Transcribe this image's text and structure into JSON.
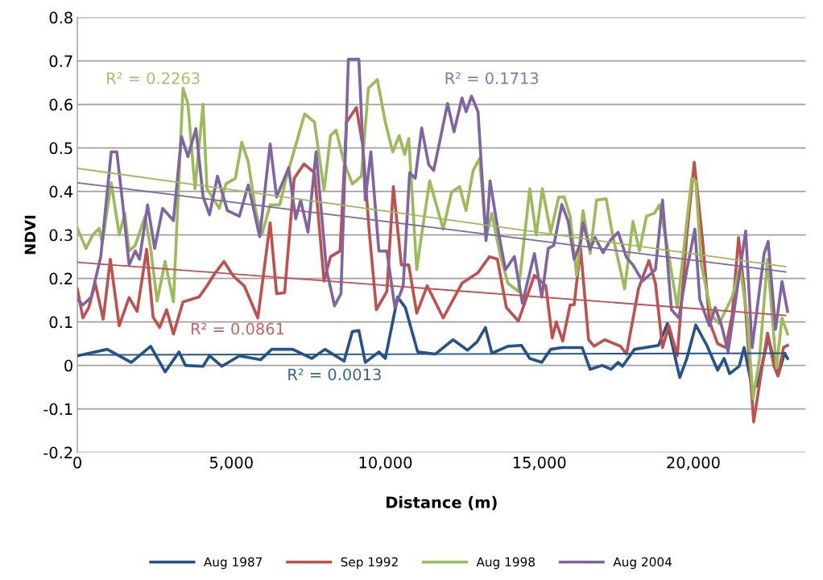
{
  "chart_data": {
    "type": "line",
    "xlabel": "Distance (m)",
    "ylabel": "NDVI",
    "xlim": [
      0,
      23650
    ],
    "xticks": [
      {
        "value": 0,
        "label": "0"
      },
      {
        "value": 5000,
        "label": "5,000"
      },
      {
        "value": 10000,
        "label": "10,000"
      },
      {
        "value": 15000,
        "label": "15,000"
      },
      {
        "value": 20000,
        "label": "20,000"
      }
    ],
    "ylim": [
      -0.2,
      0.8
    ],
    "yticks": [
      -0.2,
      -0.1,
      0,
      0.1,
      0.2,
      0.3,
      0.4,
      0.5,
      0.6,
      0.7,
      0.8
    ],
    "grid": "y",
    "legend": "bottom",
    "marker": "none",
    "line_style": "solid",
    "series": [
      {
        "name": "Aug 1987",
        "color": "#23538a",
        "x": [
          0,
          970,
          1750,
          2380,
          2850,
          3300,
          3510,
          4080,
          4290,
          4690,
          5260,
          5950,
          6310,
          6990,
          7610,
          8040,
          8660,
          8930,
          9140,
          9350,
          9790,
          10000,
          10400,
          10650,
          11050,
          11620,
          12200,
          12670,
          12980,
          13250,
          13460,
          13980,
          14420,
          14690,
          15080,
          15370,
          15730,
          16390,
          16650,
          17040,
          17330,
          17560,
          17700,
          18090,
          18870,
          19160,
          19560,
          19790,
          20080,
          20440,
          20790,
          21000,
          21180,
          21490,
          21650,
          21910,
          22090,
          22430,
          22750,
          22960,
          23060
        ],
        "values": [
          0.022,
          0.037,
          0.007,
          0.044,
          -0.015,
          0.031,
          0,
          -0.002,
          0.022,
          -0.002,
          0.022,
          0.013,
          0.037,
          0.037,
          0.016,
          0.037,
          0.01,
          0.078,
          0.08,
          0.007,
          0.031,
          0.016,
          0.157,
          0.133,
          0.031,
          0.026,
          0.059,
          0.035,
          0.054,
          0.087,
          0.028,
          0.044,
          0.046,
          0.016,
          0.007,
          0.037,
          0.041,
          0.041,
          -0.009,
          0,
          -0.009,
          0.007,
          -0.002,
          0.037,
          0.046,
          0.096,
          -0.028,
          0.016,
          0.093,
          0.046,
          -0.011,
          0.016,
          -0.019,
          -0.002,
          0.041,
          -0.052,
          -0.046,
          0.065,
          -0.024,
          0.028,
          0.016
        ]
      },
      {
        "name": "Sep 1992",
        "color": "#c0504d",
        "x": [
          0,
          180,
          370,
          580,
          840,
          1070,
          1360,
          1680,
          1940,
          2250,
          2460,
          2670,
          2900,
          3120,
          3430,
          3950,
          4210,
          4480,
          4760,
          5080,
          5420,
          5860,
          6260,
          6470,
          6730,
          7040,
          7360,
          7700,
          8010,
          8220,
          8530,
          8740,
          9060,
          9270,
          9480,
          9710,
          10050,
          10260,
          10520,
          10760,
          11020,
          11360,
          11880,
          12490,
          13010,
          13380,
          13640,
          13930,
          14320,
          14840,
          15210,
          15420,
          15550,
          15760,
          16000,
          16130,
          16340,
          16600,
          16780,
          17120,
          17640,
          17830,
          18220,
          18560,
          18770,
          19000,
          19210,
          19480,
          19790,
          20030,
          20180,
          20310,
          20520,
          20790,
          21050,
          21260,
          21470,
          21650,
          21960,
          22170,
          22410,
          22620,
          22750,
          22930,
          23060
        ],
        "values": [
          0.176,
          0.109,
          0.133,
          0.189,
          0.106,
          0.244,
          0.091,
          0.156,
          0.124,
          0.267,
          0.111,
          0.087,
          0.128,
          0.072,
          0.146,
          0.157,
          0.183,
          0.213,
          0.239,
          0.204,
          0.183,
          0.109,
          0.328,
          0.165,
          0.167,
          0.43,
          0.463,
          0.443,
          0.194,
          0.25,
          0.263,
          0.559,
          0.593,
          0.504,
          0.306,
          0.128,
          0.17,
          0.411,
          0.231,
          0.231,
          0.12,
          0.183,
          0.109,
          0.189,
          0.213,
          0.25,
          0.244,
          0.133,
          0.102,
          0.207,
          0.183,
          0.063,
          0.1,
          0.056,
          0.139,
          0.139,
          0.269,
          0.059,
          0.044,
          0.059,
          0.044,
          0.026,
          0.176,
          0.241,
          0.189,
          0.041,
          0.091,
          0.022,
          0.3,
          0.467,
          0.369,
          0.281,
          0.102,
          0.05,
          0.041,
          0.115,
          0.294,
          0.176,
          -0.13,
          -0.033,
          0.074,
          -0.002,
          -0.024,
          0.041,
          0.046
        ]
      },
      {
        "name": "Aug 1998",
        "color": "#9bbb59",
        "x": [
          0,
          280,
          500,
          710,
          810,
          1100,
          1360,
          1540,
          1680,
          1880,
          2200,
          2380,
          2590,
          2850,
          3120,
          3430,
          3590,
          3820,
          4080,
          4210,
          4610,
          4820,
          5130,
          5340,
          5550,
          5790,
          5990,
          6260,
          6570,
          6780,
          7040,
          7380,
          7700,
          8010,
          8220,
          8400,
          8660,
          8930,
          9220,
          9450,
          9740,
          10000,
          10240,
          10450,
          10630,
          10760,
          11020,
          11150,
          11440,
          11880,
          12150,
          12410,
          12620,
          12850,
          13060,
          13270,
          13460,
          13720,
          13980,
          14320,
          14690,
          14900,
          15100,
          15370,
          15630,
          15810,
          16000,
          16210,
          16420,
          16650,
          16860,
          17170,
          17380,
          17770,
          18040,
          18250,
          18480,
          18740,
          18900,
          19140,
          19480,
          19790,
          19950,
          20080,
          20260,
          20600,
          20840,
          21260,
          21520,
          21750,
          21940,
          22150,
          22410,
          22700,
          22880,
          23060
        ],
        "values": [
          0.315,
          0.269,
          0.3,
          0.315,
          0.281,
          0.42,
          0.3,
          0.35,
          0.263,
          0.276,
          0.343,
          0.269,
          0.148,
          0.239,
          0.146,
          0.637,
          0.602,
          0.406,
          0.6,
          0.406,
          0.361,
          0.417,
          0.43,
          0.513,
          0.467,
          0.356,
          0.3,
          0.369,
          0.369,
          0.43,
          0.494,
          0.578,
          0.559,
          0.402,
          0.528,
          0.541,
          0.467,
          0.417,
          0.435,
          0.637,
          0.657,
          0.559,
          0.491,
          0.528,
          0.485,
          0.522,
          0.22,
          0.287,
          0.424,
          0.313,
          0.398,
          0.411,
          0.356,
          0.448,
          0.476,
          0.294,
          0.35,
          0.257,
          0.189,
          0.17,
          0.406,
          0.3,
          0.406,
          0.306,
          0.387,
          0.387,
          0.343,
          0.207,
          0.356,
          0.257,
          0.38,
          0.383,
          0.3,
          0.176,
          0.331,
          0.263,
          0.343,
          0.35,
          0.369,
          0.281,
          0.133,
          0.331,
          0.43,
          0.424,
          0.231,
          0.115,
          0.096,
          0.157,
          0.226,
          0.109,
          -0.076,
          0.016,
          0.244,
          -0.006,
          0.109,
          0.072
        ]
      },
      {
        "name": "Aug 2004",
        "color": "#8064a2",
        "x": [
          0,
          180,
          450,
          760,
          1100,
          1280,
          1460,
          1680,
          1880,
          2020,
          2280,
          2510,
          2770,
          3120,
          3380,
          3590,
          3850,
          4080,
          4290,
          4550,
          4870,
          5260,
          5550,
          5920,
          6260,
          6470,
          6860,
          7090,
          7250,
          7490,
          7750,
          8090,
          8350,
          8560,
          8800,
          9140,
          9350,
          9530,
          9790,
          10050,
          10310,
          10580,
          10790,
          10970,
          11180,
          11410,
          11570,
          11750,
          12020,
          12230,
          12490,
          12620,
          12800,
          13010,
          13270,
          13400,
          13640,
          13900,
          14190,
          14450,
          14840,
          15080,
          15290,
          15470,
          15730,
          15940,
          16130,
          16340,
          16420,
          16650,
          16810,
          17070,
          17300,
          17560,
          17830,
          18040,
          18350,
          18770,
          19000,
          19290,
          19530,
          19790,
          20050,
          20210,
          20520,
          20710,
          20920,
          21130,
          21490,
          21700,
          21910,
          22300,
          22430,
          22670,
          22880,
          23060
        ],
        "values": [
          0.152,
          0.139,
          0.157,
          0.25,
          0.491,
          0.491,
          0.38,
          0.231,
          0.263,
          0.244,
          0.369,
          0.269,
          0.361,
          0.333,
          0.526,
          0.48,
          0.544,
          0.389,
          0.346,
          0.435,
          0.356,
          0.343,
          0.415,
          0.296,
          0.509,
          0.387,
          0.454,
          0.337,
          0.38,
          0.306,
          0.491,
          0.22,
          0.137,
          0.165,
          0.704,
          0.704,
          0.38,
          0.491,
          0.263,
          0.263,
          0.133,
          0.183,
          0.443,
          0.43,
          0.546,
          0.461,
          0.448,
          0.509,
          0.602,
          0.537,
          0.615,
          0.583,
          0.619,
          0.583,
          0.287,
          0.424,
          0.319,
          0.22,
          0.25,
          0.143,
          0.257,
          0.157,
          0.269,
          0.276,
          0.37,
          0.331,
          0.244,
          0.281,
          0.328,
          0.267,
          0.294,
          0.259,
          0.287,
          0.306,
          0.248,
          0.231,
          0.194,
          0.22,
          0.38,
          0.128,
          0.109,
          0.22,
          0.313,
          0.152,
          0.091,
          0.133,
          0.091,
          0.031,
          0.207,
          0.309,
          0.041,
          0.257,
          0.285,
          0.083,
          0.193,
          0.124
        ]
      },
      {
        "color": "#23538a",
        "x": [
          0,
          23000
        ],
        "values": [
          0.024,
          0.028
        ]
      },
      {
        "color": "#c0504d",
        "x": [
          0,
          23000
        ],
        "values": [
          0.237,
          0.115
        ]
      },
      {
        "color": "#9bbb59",
        "x": [
          0,
          23000
        ],
        "values": [
          0.453,
          0.227
        ]
      },
      {
        "color": "#8064a2",
        "x": [
          0,
          23000
        ],
        "values": [
          0.42,
          0.215
        ]
      }
    ],
    "annotations": [
      "R² = 0.0013",
      "R² = 0.0861",
      "R² = 0.2263",
      "R² = 0.1713"
    ]
  }
}
